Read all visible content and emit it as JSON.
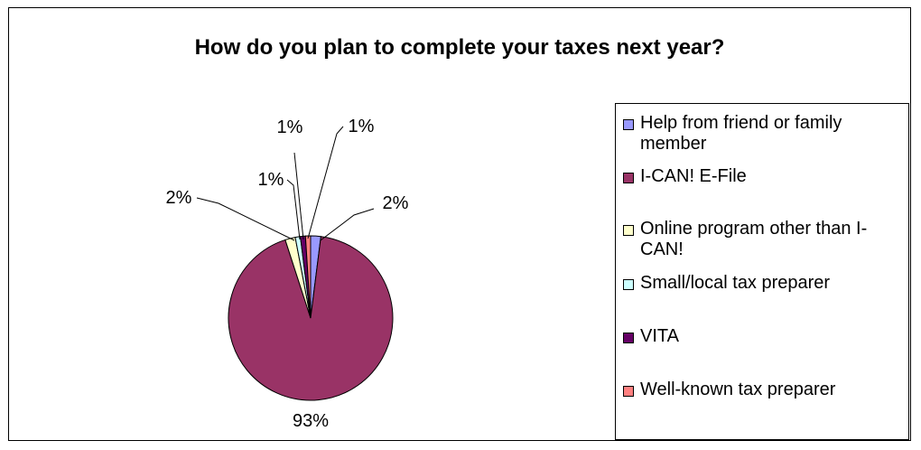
{
  "chart_data": {
    "type": "pie",
    "title": "How do you plan to complete your taxes next year?",
    "slices": [
      {
        "name": "Help from friend or family member",
        "value": 2,
        "label": "2%",
        "color": "#9999ff"
      },
      {
        "name": "I-CAN! E-File",
        "value": 93,
        "label": "93%",
        "color": "#993366"
      },
      {
        "name": "Online program other than I-CAN!",
        "value": 2,
        "label": "2%",
        "color": "#ffffcc"
      },
      {
        "name": "Small/local tax preparer",
        "value": 1,
        "label": "1%",
        "color": "#ccffff"
      },
      {
        "name": "VITA",
        "value": 1,
        "label": "1%",
        "color": "#660066"
      },
      {
        "name": "Well-known tax preparer",
        "value": 1,
        "label": "1%",
        "color": "#ff8080"
      }
    ],
    "legend": {
      "position": "right"
    }
  }
}
